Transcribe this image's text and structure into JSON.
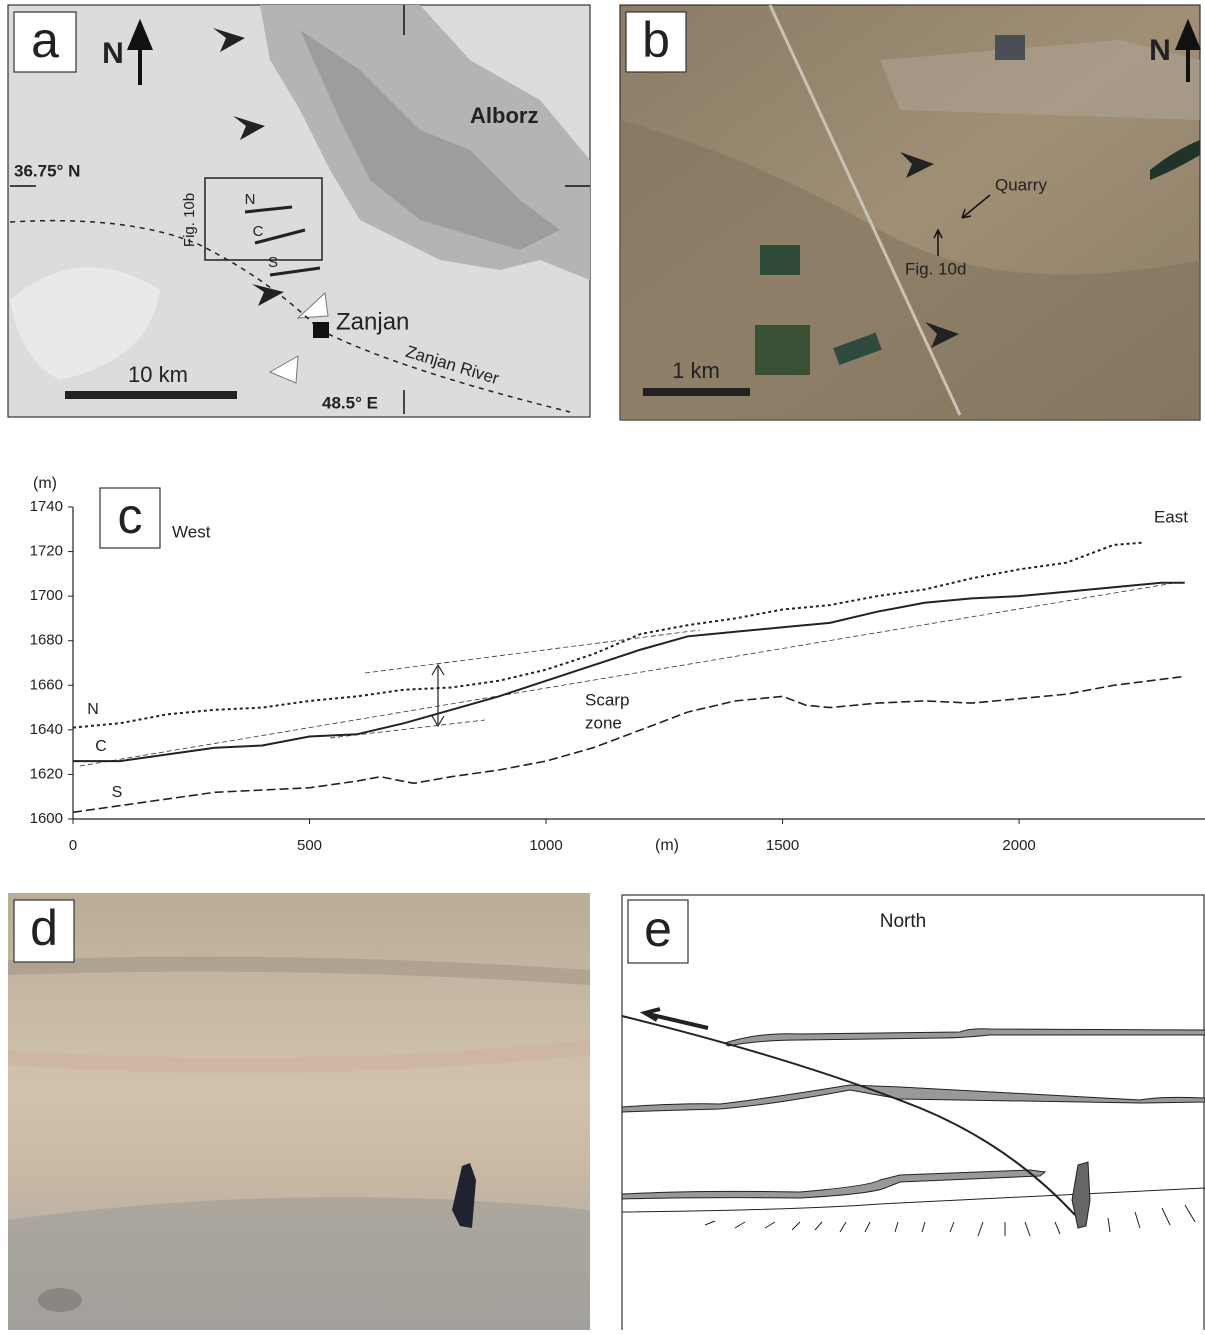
{
  "panel_a": {
    "letter": "a",
    "north": "N",
    "region": "Alborz",
    "latitude": "36.75° N",
    "inset_label": "Fig. 10b",
    "profile_labels": [
      "N",
      "C",
      "S"
    ],
    "city": "Zanjan",
    "river": "Zanjan River",
    "scale": "10 km",
    "longitude": "48.5° E"
  },
  "panel_b": {
    "letter": "b",
    "north": "N",
    "quarry": "Quarry",
    "photo_label": "Fig. 10d",
    "scale": "1 km"
  },
  "chart_data": {
    "type": "line",
    "panel_letter": "c",
    "x_label": "(m)",
    "y_label": "(m)",
    "xlim": [
      0,
      2393
    ],
    "ylim": [
      1600,
      1740
    ],
    "xticks": [
      0,
      500,
      1000,
      1500,
      2000
    ],
    "yticks": [
      1600,
      1620,
      1640,
      1660,
      1680,
      1700,
      1720,
      1740
    ],
    "annotations": [
      "West",
      "East"
    ],
    "scarp_label": [
      "Scarp",
      "zone"
    ],
    "series": [
      {
        "name": "N",
        "style": "dotted",
        "color": "#222",
        "x": [
          0,
          100,
          200,
          300,
          400,
          500,
          600,
          700,
          800,
          900,
          1000,
          1100,
          1200,
          1300,
          1400,
          1500,
          1600,
          1700,
          1800,
          1900,
          2000,
          2100,
          2200,
          2260
        ],
        "values": [
          1641,
          1643,
          1647,
          1649,
          1650,
          1653,
          1655,
          1658,
          1659,
          1662,
          1667,
          1674,
          1683,
          1687,
          1690,
          1694,
          1696,
          1700,
          1703,
          1708,
          1712,
          1715,
          1723,
          1724
        ]
      },
      {
        "name": "C",
        "style": "solid",
        "color": "#222",
        "x": [
          0,
          100,
          200,
          300,
          400,
          500,
          600,
          700,
          800,
          900,
          1000,
          1100,
          1200,
          1300,
          1400,
          1500,
          1600,
          1700,
          1800,
          1900,
          2000,
          2100,
          2200,
          2300,
          2350
        ],
        "values": [
          1626,
          1626,
          1629,
          1632,
          1633,
          1637,
          1638,
          1643,
          1649,
          1655,
          1662,
          1669,
          1676,
          1682,
          1684,
          1686,
          1688,
          1693,
          1697,
          1699,
          1700,
          1702,
          1704,
          1706,
          1706
        ]
      },
      {
        "name": "S",
        "style": "dashed",
        "color": "#222",
        "x": [
          0,
          100,
          200,
          300,
          400,
          500,
          600,
          650,
          720,
          800,
          900,
          1000,
          1100,
          1200,
          1300,
          1400,
          1500,
          1550,
          1600,
          1700,
          1800,
          1900,
          2000,
          2100,
          2200,
          2350
        ],
        "values": [
          1603,
          1606,
          1609,
          1612,
          1613,
          1614,
          1617,
          1619,
          1616,
          1619,
          1622,
          1626,
          1632,
          1640,
          1648,
          1653,
          1655,
          1651,
          1650,
          1652,
          1653,
          1652,
          1654,
          1656,
          1660,
          1664
        ]
      }
    ]
  },
  "panel_d": {
    "letter": "d"
  },
  "panel_e": {
    "letter": "e",
    "direction": "North"
  }
}
